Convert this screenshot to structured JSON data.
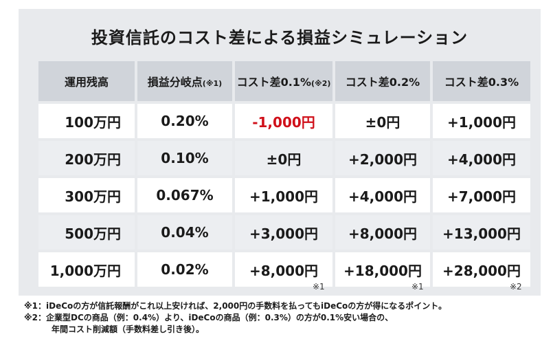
{
  "title": "投資信託のコスト差による損益シミュレーション",
  "headers": [
    {
      "label": "運用残高",
      "note": ""
    },
    {
      "label": "損益分岐点",
      "note": "(※1)"
    },
    {
      "label": "コスト差0.1%",
      "note": "(※2)"
    },
    {
      "label": "コスト差0.2%",
      "note": ""
    },
    {
      "label": "コスト差0.3%",
      "note": ""
    }
  ],
  "rows": [
    [
      "100万円",
      "0.20%",
      "-1,000円",
      "±0円",
      "+1,000円"
    ],
    [
      "200万円",
      "0.10%",
      "±0円",
      "+2,000円",
      "+4,000円"
    ],
    [
      "300万円",
      "0.067%",
      "+1,000円",
      "+4,000円",
      "+7,000円"
    ],
    [
      "500万円",
      "0.04%",
      "+3,000円",
      "+8,000円",
      "+13,000円"
    ],
    [
      "1,000万円",
      "0.02%",
      "+8,000円",
      "+18,000円",
      "+28,000円"
    ]
  ],
  "column_notes": [
    "※1",
    "※1",
    "※2"
  ],
  "footnotes": {
    "note1": "※1：iDeCoの方が信託報酬がこれ以上安ければ、2,000円の手数料を払ってもiDeCoの方が得になるポイント。",
    "note2_line1": "※2：企業型DCの商品（例：0.4%）より、iDeCoの商品（例：0.3%）の方が0.1%安い場合の、",
    "note2_line2": "年間コスト削減額（手数料差し引き後）。"
  }
}
